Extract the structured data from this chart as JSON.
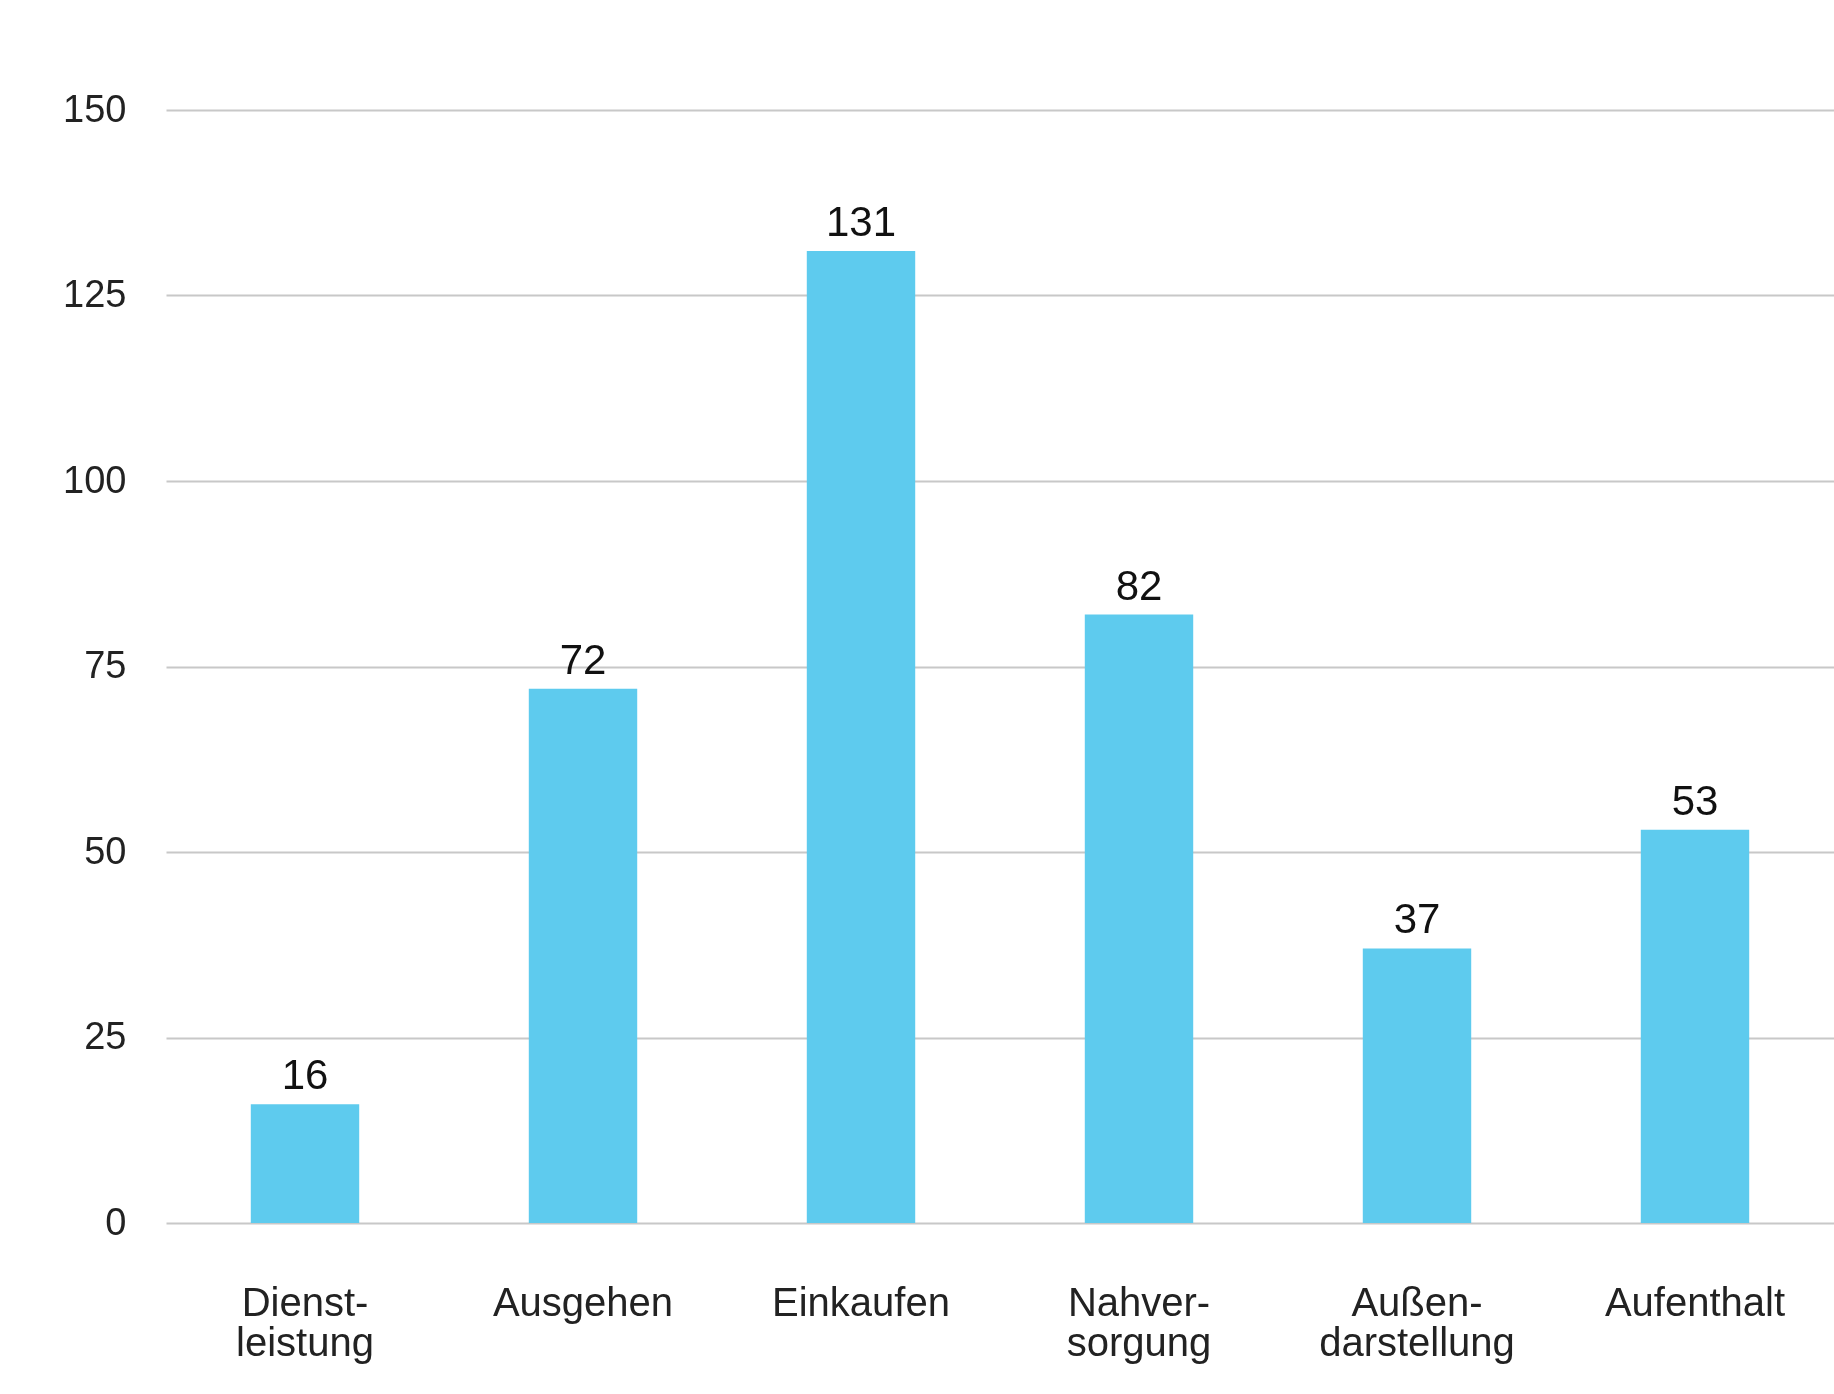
{
  "chart_data": {
    "type": "bar",
    "categories": [
      "Dienst-\nleistung",
      "Ausgehen",
      "Einkaufen",
      "Nahver-\nsorgung",
      "Außen-\ndarstellung",
      "Aufenthalt"
    ],
    "values": [
      16,
      72,
      131,
      82,
      37,
      53
    ],
    "color": "#5ecbee",
    "ylim": [
      0,
      150
    ],
    "yticks": [
      0,
      25,
      50,
      75,
      100,
      125,
      150
    ],
    "grid": "y",
    "data_labels": true
  }
}
